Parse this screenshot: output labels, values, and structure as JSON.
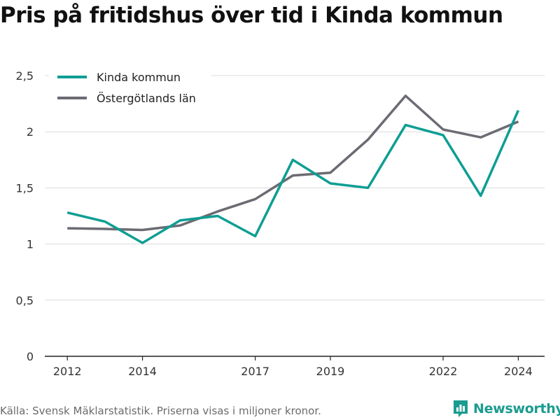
{
  "colors": {
    "kinda": "#0e9e93",
    "ostergotland": "#6b6b73",
    "grid": "#dcdcdc",
    "brand": "#1a9c8f"
  },
  "chart_data": {
    "type": "line",
    "title": "Pris på fritidshus över tid i Kinda kommun",
    "x": [
      2012,
      2013,
      2014,
      2015,
      2016,
      2017,
      2018,
      2019,
      2020,
      2021,
      2022,
      2023,
      2024
    ],
    "x_ticks": [
      2012,
      2014,
      2017,
      2019,
      2022,
      2024
    ],
    "x_tick_labels": [
      "2012",
      "2014",
      "2017",
      "2019",
      "2022",
      "2024"
    ],
    "xlim": [
      2011.4,
      2024.7
    ],
    "y_ticks": [
      0,
      0.5,
      1,
      1.5,
      2,
      2.5
    ],
    "y_tick_labels": [
      "0",
      "0,5",
      "1",
      "1,5",
      "2",
      "2,5"
    ],
    "ylim": [
      0,
      2.5
    ],
    "grid": true,
    "legend_position": "top-left",
    "series": [
      {
        "name": "Kinda kommun",
        "color": "#0e9e93",
        "values": [
          1.28,
          1.2,
          1.01,
          1.21,
          1.25,
          1.07,
          1.75,
          1.54,
          1.5,
          2.06,
          1.97,
          1.43,
          2.19
        ]
      },
      {
        "name": "Östergötlands län",
        "color": "#6b6b73",
        "values": [
          1.14,
          1.135,
          1.125,
          1.165,
          1.29,
          1.4,
          1.61,
          1.635,
          1.93,
          2.32,
          2.02,
          1.95,
          2.09
        ]
      }
    ]
  },
  "footer": {
    "source": "Källa: Svensk Mäklarstatistik. Priserna visas i miljoner kronor.",
    "brand": "Newsworthy",
    "brand_icon": "newsworthy-logo-icon"
  }
}
